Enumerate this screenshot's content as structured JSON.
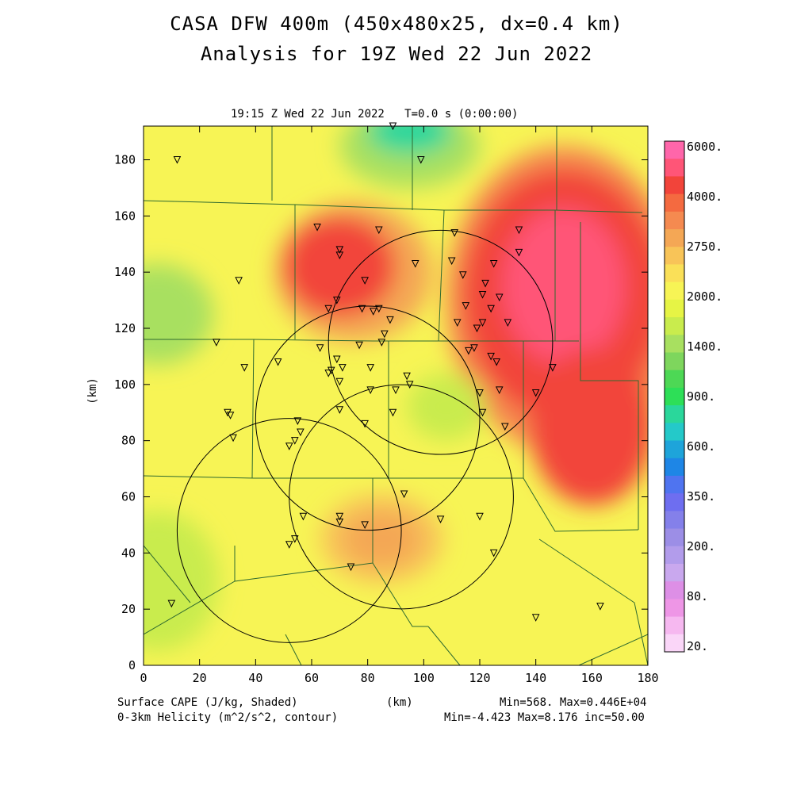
{
  "header": {
    "title_line1": "CASA DFW 400m (450x480x25, dx=0.4 km)",
    "title_line2": "Analysis for 19Z Wed 22 Jun 2022",
    "subtitle": "19:15 Z Wed 22 Jun 2022   T=0.0 s (0:00:00)"
  },
  "footer": {
    "field1": "Surface CAPE (J/kg, Shaded)",
    "field2": "0-3km Helicity (m^2/s^2, contour)",
    "xunit": "(km)",
    "stats1": "Min=568. Max=0.446E+04",
    "stats2": "Min=-4.423 Max=8.176 inc=50.00"
  },
  "chart_data": {
    "type": "heatmap",
    "title": "CASA DFW 400m (450x480x25, dx=0.4 km)",
    "xlabel": "(km)",
    "ylabel": "(km)",
    "xlim": [
      0,
      180
    ],
    "ylim": [
      0,
      192
    ],
    "x_ticks": [
      0,
      20,
      40,
      60,
      80,
      100,
      120,
      140,
      160,
      180
    ],
    "y_ticks": [
      0,
      20,
      40,
      60,
      80,
      100,
      120,
      140,
      160,
      180
    ],
    "colorbar": {
      "labels": [
        "6000.",
        "4000.",
        "2750.",
        "2000.",
        "1400.",
        "900.",
        "600.",
        "350.",
        "200.",
        "80.",
        "20."
      ],
      "colors": [
        "#ff66aa",
        "#ff5577",
        "#f2443a",
        "#f46a40",
        "#f58a50",
        "#f4a755",
        "#f8c458",
        "#fae058",
        "#f7f455",
        "#e6f445",
        "#c9ec4d",
        "#a8e060",
        "#7ed65d",
        "#4dd855",
        "#2ddf57",
        "#2ad79b",
        "#24c9c9",
        "#1ea4da",
        "#1e86e6",
        "#4f74f0",
        "#6e6ef0",
        "#8480ea",
        "#9c8ee6",
        "#b29ceb",
        "#c9a8ee",
        "#dd8fe6",
        "#ee96e6",
        "#f6b8f0",
        "#fad6f8"
      ]
    },
    "cape_blobs": [
      {
        "x": 150,
        "y": 130,
        "rx": 42,
        "ry": 55,
        "level": "#f58a50"
      },
      {
        "x": 150,
        "y": 132,
        "rx": 36,
        "ry": 45,
        "level": "#f2443a"
      },
      {
        "x": 150,
        "y": 135,
        "rx": 22,
        "ry": 28,
        "level": "#ff5577"
      },
      {
        "x": 160,
        "y": 85,
        "rx": 22,
        "ry": 28,
        "level": "#f2443a"
      },
      {
        "x": 75,
        "y": 140,
        "rx": 28,
        "ry": 25,
        "level": "#f4a755"
      },
      {
        "x": 70,
        "y": 142,
        "rx": 20,
        "ry": 18,
        "level": "#f2443a"
      },
      {
        "x": 85,
        "y": 45,
        "rx": 22,
        "ry": 16,
        "level": "#f8c458"
      },
      {
        "x": 85,
        "y": 45,
        "rx": 14,
        "ry": 10,
        "level": "#f4a755"
      },
      {
        "x": 95,
        "y": 185,
        "rx": 25,
        "ry": 15,
        "level": "#a8e060"
      },
      {
        "x": 95,
        "y": 190,
        "rx": 15,
        "ry": 8,
        "level": "#2ad79b"
      },
      {
        "x": 5,
        "y": 125,
        "rx": 20,
        "ry": 18,
        "level": "#a8e060"
      },
      {
        "x": 108,
        "y": 92,
        "rx": 14,
        "ry": 12,
        "level": "#c9ec4d"
      },
      {
        "x": 5,
        "y": 30,
        "rx": 22,
        "ry": 25,
        "level": "#c9ec4d"
      }
    ],
    "helicity_circles": [
      {
        "x": 106,
        "y": 115,
        "r": 40
      },
      {
        "x": 80,
        "y": 88,
        "r": 40
      },
      {
        "x": 92,
        "y": 60,
        "r": 40
      },
      {
        "x": 52,
        "y": 48,
        "r": 40
      }
    ],
    "stations": [
      [
        12,
        180
      ],
      [
        89,
        192
      ],
      [
        99,
        180
      ],
      [
        62,
        156
      ],
      [
        84,
        155
      ],
      [
        111,
        154
      ],
      [
        134,
        155
      ],
      [
        70,
        148
      ],
      [
        70,
        146
      ],
      [
        97,
        143
      ],
      [
        110,
        144
      ],
      [
        125,
        143
      ],
      [
        134,
        147
      ],
      [
        114,
        139
      ],
      [
        34,
        137
      ],
      [
        79,
        137
      ],
      [
        122,
        136
      ],
      [
        121,
        132
      ],
      [
        127,
        131
      ],
      [
        69,
        130
      ],
      [
        115,
        128
      ],
      [
        66,
        127
      ],
      [
        78,
        127
      ],
      [
        84,
        127
      ],
      [
        82,
        126
      ],
      [
        124,
        127
      ],
      [
        88,
        123
      ],
      [
        112,
        122
      ],
      [
        121,
        122
      ],
      [
        130,
        122
      ],
      [
        119,
        120
      ],
      [
        86,
        118
      ],
      [
        85,
        115
      ],
      [
        26,
        115
      ],
      [
        63,
        113
      ],
      [
        77,
        114
      ],
      [
        118,
        113
      ],
      [
        116,
        112
      ],
      [
        124,
        110
      ],
      [
        69,
        109
      ],
      [
        126,
        108
      ],
      [
        48,
        108
      ],
      [
        36,
        106
      ],
      [
        71,
        106
      ],
      [
        81,
        106
      ],
      [
        146,
        106
      ],
      [
        67,
        105
      ],
      [
        66,
        104
      ],
      [
        94,
        103
      ],
      [
        70,
        101
      ],
      [
        95,
        100
      ],
      [
        90,
        98
      ],
      [
        81,
        98
      ],
      [
        120,
        97
      ],
      [
        127,
        98
      ],
      [
        140,
        97
      ],
      [
        30,
        90
      ],
      [
        31,
        89
      ],
      [
        70,
        91
      ],
      [
        89,
        90
      ],
      [
        121,
        90
      ],
      [
        55,
        87
      ],
      [
        79,
        86
      ],
      [
        129,
        85
      ],
      [
        56,
        83
      ],
      [
        54,
        80
      ],
      [
        32,
        81
      ],
      [
        52,
        78
      ],
      [
        93,
        61
      ],
      [
        57,
        53
      ],
      [
        70,
        53
      ],
      [
        70,
        51
      ],
      [
        79,
        50
      ],
      [
        106,
        52
      ],
      [
        120,
        53
      ],
      [
        54,
        45
      ],
      [
        52,
        43
      ],
      [
        125,
        40
      ],
      [
        74,
        35
      ],
      [
        10,
        22
      ],
      [
        140,
        17
      ],
      [
        163,
        21
      ]
    ]
  }
}
